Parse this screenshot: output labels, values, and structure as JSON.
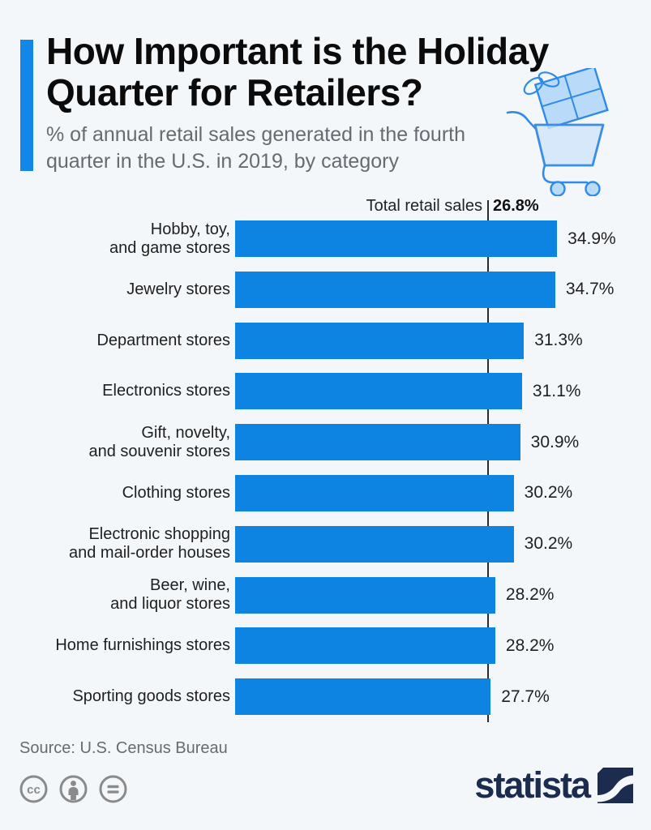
{
  "page": {
    "background": "#f4f7fa"
  },
  "header": {
    "title_lines": [
      "How Important is the Holiday",
      "Quarter for Retailers?"
    ],
    "subtitle_lines": [
      "% of annual retail sales generated in the fourth",
      "quarter in the U.S. in 2019, by category"
    ],
    "accent_color": "#1287e8",
    "icon": "shopping-cart-gift-icon"
  },
  "chart_data": {
    "type": "bar",
    "orientation": "horizontal",
    "title": "How Important is the Holiday Quarter for Retailers?",
    "subtitle": "% of annual retail sales generated in the fourth quarter in the U.S. in 2019, by category",
    "categories": [
      "Hobby, toy, and game stores",
      "Jewelry stores",
      "Department stores",
      "Electronics stores",
      "Gift, novelty, and souvenir stores",
      "Clothing stores",
      "Electronic shopping and mail-order houses",
      "Beer, wine, and liquor stores",
      "Home furnishings stores",
      "Sporting goods stores"
    ],
    "category_lines": [
      [
        "Hobby, toy,",
        "and game stores"
      ],
      [
        "Jewelry stores"
      ],
      [
        "Department stores"
      ],
      [
        "Electronics stores"
      ],
      [
        "Gift, novelty,",
        "and souvenir stores"
      ],
      [
        "Clothing stores"
      ],
      [
        "Electronic shopping",
        "and mail-order houses"
      ],
      [
        "Beer, wine,",
        "and liquor stores"
      ],
      [
        "Home furnishings stores"
      ],
      [
        "Sporting goods stores"
      ]
    ],
    "values": [
      34.9,
      34.7,
      31.3,
      31.1,
      30.9,
      30.2,
      30.2,
      28.2,
      28.2,
      27.7
    ],
    "value_labels": [
      "34.9%",
      "34.7%",
      "31.3%",
      "31.1%",
      "30.9%",
      "30.2%",
      "30.2%",
      "28.2%",
      "28.2%",
      "27.7%"
    ],
    "reference_line": {
      "label": "Total retail sales",
      "value": 26.8,
      "value_label": "26.8%"
    },
    "xlim": [
      0,
      36
    ],
    "bar_color": "#0d83e2",
    "xlabel": "",
    "ylabel": "",
    "grid": false,
    "legend": false
  },
  "footer": {
    "source": "Source: U.S. Census Bureau",
    "license_icons": [
      "cc-icon",
      "cc-by-icon",
      "cc-nd-icon"
    ],
    "brand_name": "statista",
    "brand_color": "#1b2c4e"
  }
}
